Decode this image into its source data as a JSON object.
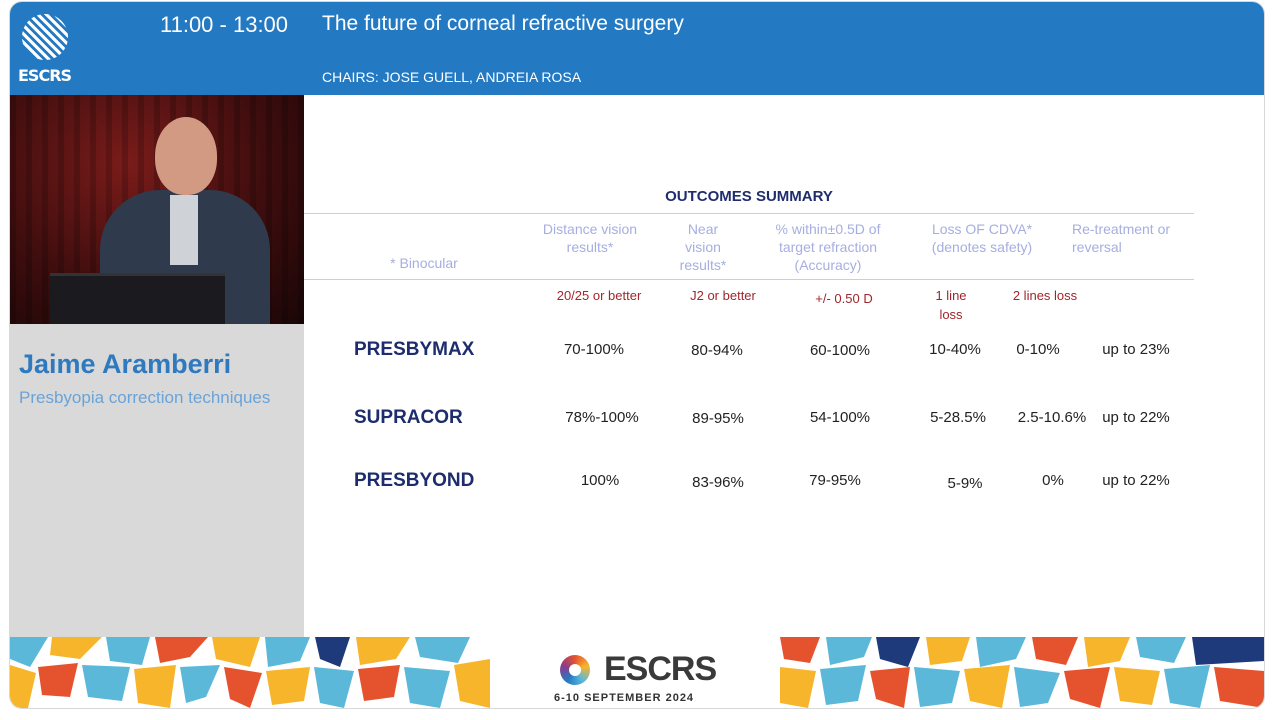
{
  "header": {
    "logo_text": "ESCRS",
    "time": "11:00 - 13:00",
    "title": "The future of corneal refractive surgery",
    "chairs": "CHAIRS: JOSE GUELL, ANDREIA ROSA"
  },
  "speaker": {
    "name": "Jaime Aramberri",
    "topic": "Presbyopia correction techniques"
  },
  "slide": {
    "title": "OUTCOMES SUMMARY",
    "binocular_note": "* Binocular",
    "columns": [
      "Distance vision results*",
      "Near vision results*",
      "% within±0.5D of target refraction (Accuracy)",
      "Loss OF CDVA* (denotes safety)",
      "Re-treatment or reversal"
    ],
    "subheads": [
      "20/25 or better",
      "J2 or better",
      "+/- 0.50 D",
      "1 line loss",
      "2 lines loss"
    ],
    "rows": [
      {
        "label": "PRESBYMAX",
        "distance": "70-100%",
        "near": "80-94%",
        "accuracy": "60-100%",
        "loss1": "10-40%",
        "loss2": "0-10%",
        "retreat": "up to 23%"
      },
      {
        "label": "SUPRACOR",
        "distance": "78%-100%",
        "near": "89-95%",
        "accuracy": "54-100%",
        "loss1": "5-28.5%",
        "loss2": "2.5-10.6%",
        "retreat": "up to 22%"
      },
      {
        "label": "PRESBYOND",
        "distance": "100%",
        "near": "83-96%",
        "accuracy": "79-95%",
        "loss1": "5-9%",
        "loss2": "0%",
        "retreat": "up to 22%"
      }
    ]
  },
  "footer": {
    "brand": "ESCRS",
    "dates": "6-10 SEPTEMBER 2024"
  },
  "colors": {
    "header_blue": "#2379c2",
    "title_navy": "#1f2d6d",
    "subhead_red": "#a1262b",
    "column_lavender": "#a6aee0"
  }
}
